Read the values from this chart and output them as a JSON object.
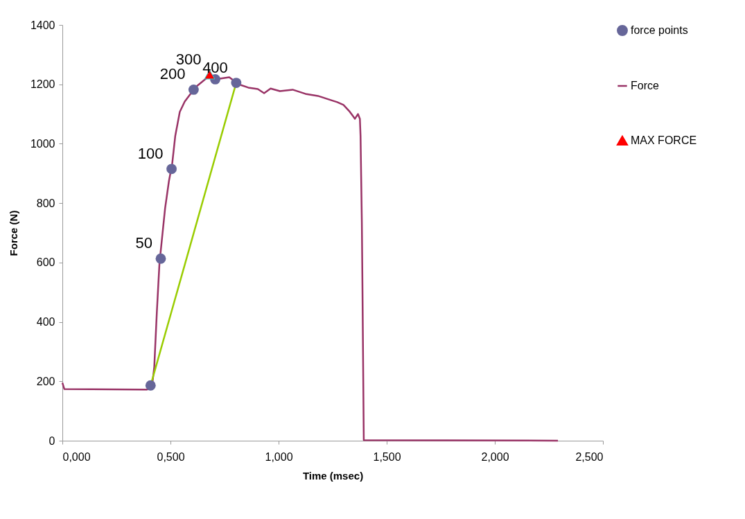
{
  "chart_data": {
    "type": "line",
    "xlabel": "Time (msec)",
    "ylabel": "Force (N)",
    "xlim": [
      0,
      2.5
    ],
    "xticks": [
      {
        "value": 0,
        "label": "0,000"
      },
      {
        "value": 0.5,
        "label": "0,500"
      },
      {
        "value": 1,
        "label": "1,000"
      },
      {
        "value": 1.5,
        "label": "1,500"
      },
      {
        "value": 2,
        "label": "2,000"
      },
      {
        "value": 2.5,
        "label": "2,500"
      }
    ],
    "ylim": [
      0,
      1400
    ],
    "yticks": [
      0,
      200,
      400,
      600,
      800,
      1000,
      1200,
      1400
    ],
    "grid": false,
    "legend": "right",
    "line_style": "solid",
    "series": [
      {
        "name": "force points",
        "type": "scatter",
        "marker": "circle",
        "color": "#666699",
        "x": [
          0.408,
          0.455,
          0.505,
          0.607,
          0.707,
          0.804
        ],
        "values": [
          186,
          613,
          915,
          1182,
          1217,
          1205
        ]
      },
      {
        "name": "Force",
        "color": "#993366",
        "x": [
          0,
          0.009,
          0.39,
          0.414,
          0.425,
          0.437,
          0.449,
          0.475,
          0.493,
          0.508,
          0.522,
          0.543,
          0.566,
          0.595,
          0.625,
          0.66,
          0.683,
          0.728,
          0.772,
          0.816,
          0.86,
          0.904,
          0.933,
          0.963,
          1.006,
          1.065,
          1.124,
          1.182,
          1.241,
          1.271,
          1.3,
          1.329,
          1.353,
          1.367,
          1.376,
          1.379,
          1.385,
          1.388,
          1.394,
          2.292
        ],
        "values": [
          195,
          174,
          172,
          179,
          248,
          434,
          597,
          782,
          875,
          933,
          1026,
          1107,
          1142,
          1170,
          1196,
          1217,
          1228,
          1219,
          1224,
          1200,
          1189,
          1184,
          1170,
          1186,
          1177,
          1182,
          1168,
          1161,
          1147,
          1140,
          1131,
          1108,
          1084,
          1100,
          1084,
          1026,
          736,
          504,
          2,
          0
        ]
      },
      {
        "name": "MAX FORCE",
        "type": "scatter",
        "marker": "triangle",
        "color": "#ff0000",
        "x": [
          0.681
        ],
        "values": [
          1233
        ]
      },
      {
        "color": "#99cc00",
        "x": [
          0.408,
          0.804
        ],
        "values": [
          186,
          1205
        ]
      }
    ],
    "annotations": [
      {
        "text": "50",
        "x": 0.455,
        "y": 613
      },
      {
        "text": "100",
        "x": 0.505,
        "y": 915
      },
      {
        "text": "200",
        "x": 0.607,
        "y": 1182
      },
      {
        "text": "300",
        "x": 0.681,
        "y": 1233
      },
      {
        "text": "400",
        "x": 0.804,
        "y": 1205
      }
    ]
  }
}
